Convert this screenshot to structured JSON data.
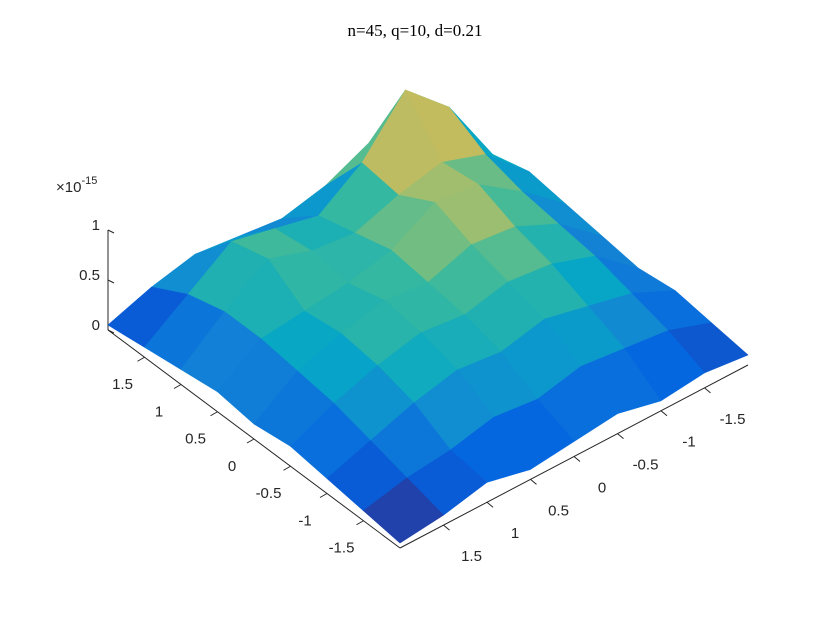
{
  "chart_data": {
    "type": "surface",
    "title": "n=45, q=10, d=0.21",
    "z_multiplier": "×10",
    "z_exponent": "-15",
    "x": [
      -2,
      -1.5,
      -1,
      -0.5,
      0,
      0.5,
      1,
      1.5,
      2
    ],
    "y": [
      -2,
      -1.5,
      -1,
      -0.5,
      0,
      0.5,
      1,
      1.5,
      2
    ],
    "z": [
      [
        0.1,
        0.15,
        0.1,
        0.2,
        0.15,
        0.1,
        0.2,
        0.1,
        0.05
      ],
      [
        0.15,
        0.3,
        0.35,
        0.4,
        0.3,
        0.35,
        0.25,
        0.2,
        0.1
      ],
      [
        0.2,
        0.4,
        0.5,
        0.6,
        0.5,
        0.55,
        0.45,
        0.3,
        0.15
      ],
      [
        0.15,
        0.5,
        0.65,
        0.7,
        0.6,
        0.65,
        0.55,
        0.4,
        0.2
      ],
      [
        0.2,
        0.55,
        0.75,
        0.8,
        0.65,
        0.7,
        0.6,
        0.45,
        0.15
      ],
      [
        0.25,
        0.6,
        0.9,
        0.95,
        0.7,
        0.6,
        0.55,
        0.5,
        0.2
      ],
      [
        0.3,
        0.7,
        0.85,
        0.75,
        0.6,
        0.65,
        0.8,
        0.5,
        0.15
      ],
      [
        0.2,
        0.9,
        1.3,
        0.8,
        0.5,
        0.6,
        0.7,
        0.4,
        0.1
      ],
      [
        0.1,
        0.3,
        0.5,
        0.3,
        0.2,
        0.25,
        0.3,
        0.2,
        0.05
      ]
    ],
    "xlim": [
      -2,
      2
    ],
    "ylim": [
      -2,
      2
    ],
    "zlim": [
      0,
      1
    ],
    "xticks": [
      -1.5,
      -1,
      -0.5,
      0,
      0.5,
      1,
      1.5
    ],
    "yticks": [
      -1.5,
      -1,
      -0.5,
      0,
      0.5,
      1,
      1.5
    ],
    "zticks": [
      0,
      0.5,
      1
    ],
    "colormap": [
      "#352a87",
      "#0363e1",
      "#1485d4",
      "#06a7c6",
      "#38b99e",
      "#92bf73",
      "#d9ba56",
      "#fcce2e",
      "#f9fb0e"
    ]
  }
}
